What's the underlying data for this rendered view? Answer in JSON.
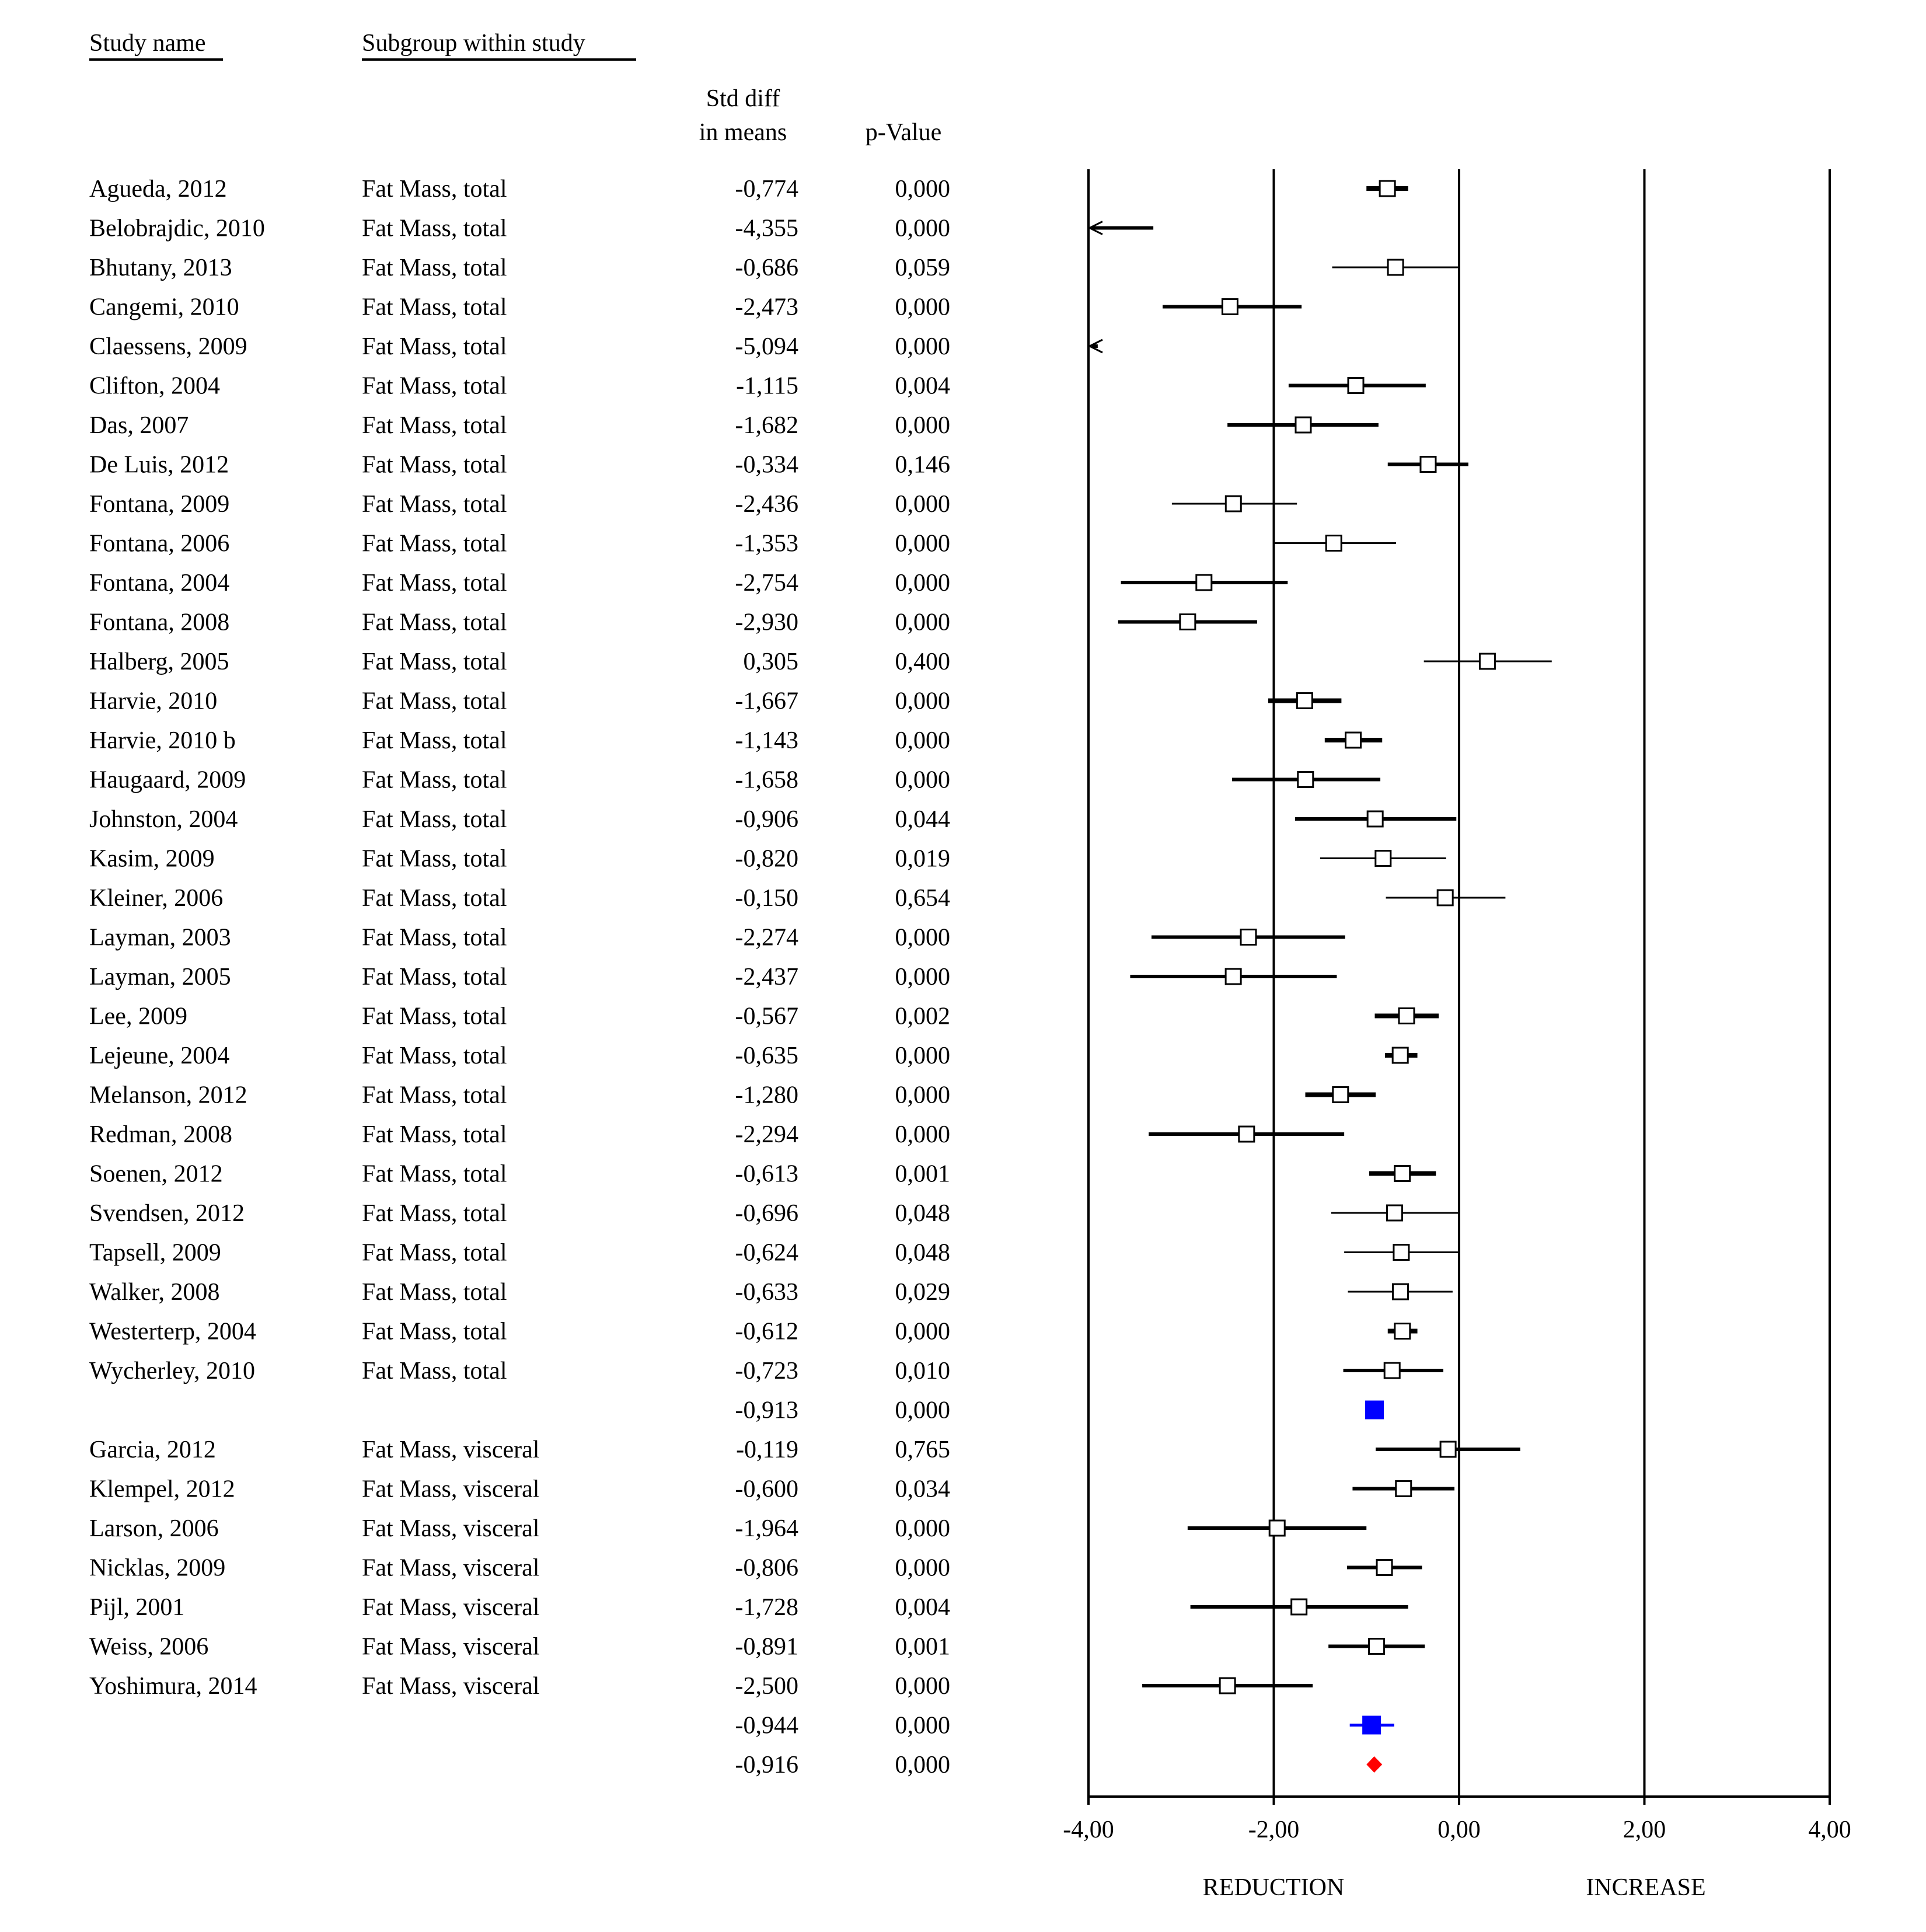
{
  "headers": {
    "study": "Study name",
    "subgroup": "Subgroup within study",
    "std_line1": "Std diff",
    "std_line2": "in means",
    "pvalue": "p-Value"
  },
  "axis_labels": {
    "left": "REDUCTION",
    "right": "INCREASE"
  },
  "colors": {
    "axis": "#000000",
    "subgroup_summary": "#0000ff",
    "overall_summary": "#ff0000",
    "study_marker_fill": "#ffffff"
  },
  "chart_data": {
    "type": "forest",
    "xlim": [
      -4,
      4
    ],
    "xticks": [
      -4,
      -2,
      0,
      2,
      4
    ],
    "xtick_labels": [
      "-4,00",
      "-2,00",
      "0,00",
      "2,00",
      "4,00"
    ],
    "reference_lines": [
      -4,
      -2,
      0,
      2,
      4
    ],
    "rows": [
      {
        "study": "Agueda, 2012",
        "subgroup": "Fat Mass, total",
        "smd": -0.774,
        "smd_label": "-0,774",
        "p": "0,000",
        "ci": [
          -1.0,
          -0.55
        ],
        "kind": "study"
      },
      {
        "study": "Belobrajdic, 2010",
        "subgroup": "Fat Mass, total",
        "smd": -4.355,
        "smd_label": "-4,355",
        "p": "0,000",
        "ci": [
          -5.4,
          -3.3
        ],
        "kind": "study"
      },
      {
        "study": "Bhutany, 2013",
        "subgroup": "Fat Mass, total",
        "smd": -0.686,
        "smd_label": "-0,686",
        "p": "0,059",
        "ci": [
          -1.37,
          0.0
        ],
        "kind": "study"
      },
      {
        "study": "Cangemi, 2010",
        "subgroup": "Fat Mass, total",
        "smd": -2.473,
        "smd_label": "-2,473",
        "p": "0,000",
        "ci": [
          -3.2,
          -1.7
        ],
        "kind": "study"
      },
      {
        "study": "Claessens, 2009",
        "subgroup": "Fat Mass, total",
        "smd": -5.094,
        "smd_label": "-5,094",
        "p": "0,000",
        "ci": [
          -6.3,
          -3.9
        ],
        "kind": "study"
      },
      {
        "study": "Clifton, 2004",
        "subgroup": "Fat Mass, total",
        "smd": -1.115,
        "smd_label": "-1,115",
        "p": "0,004",
        "ci": [
          -1.84,
          -0.36
        ],
        "kind": "study"
      },
      {
        "study": "Das, 2007",
        "subgroup": "Fat Mass, total",
        "smd": -1.682,
        "smd_label": "-1,682",
        "p": "0,000",
        "ci": [
          -2.5,
          -0.87
        ],
        "kind": "study"
      },
      {
        "study": "De Luis, 2012",
        "subgroup": "Fat Mass, total",
        "smd": -0.334,
        "smd_label": "-0,334",
        "p": "0,146",
        "ci": [
          -0.77,
          0.1
        ],
        "kind": "study"
      },
      {
        "study": "Fontana, 2009",
        "subgroup": "Fat Mass, total",
        "smd": -2.436,
        "smd_label": "-2,436",
        "p": "0,000",
        "ci": [
          -3.1,
          -1.75
        ],
        "kind": "study"
      },
      {
        "study": "Fontana, 2006",
        "subgroup": "Fat Mass, total",
        "smd": -1.353,
        "smd_label": "-1,353",
        "p": "0,000",
        "ci": [
          -2.0,
          -0.68
        ],
        "kind": "study"
      },
      {
        "study": "Fontana, 2004",
        "subgroup": "Fat Mass, total",
        "smd": -2.754,
        "smd_label": "-2,754",
        "p": "0,000",
        "ci": [
          -3.65,
          -1.85
        ],
        "kind": "study"
      },
      {
        "study": "Fontana, 2008",
        "subgroup": "Fat Mass, total",
        "smd": -2.93,
        "smd_label": "-2,930",
        "p": "0,000",
        "ci": [
          -3.68,
          -2.18
        ],
        "kind": "study"
      },
      {
        "study": "Halberg, 2005",
        "subgroup": "Fat Mass, total",
        "smd": 0.305,
        "smd_label": "0,305",
        "p": "0,400",
        "ci": [
          -0.38,
          1.0
        ],
        "kind": "study"
      },
      {
        "study": "Harvie, 2010",
        "subgroup": "Fat Mass, total",
        "smd": -1.667,
        "smd_label": "-1,667",
        "p": "0,000",
        "ci": [
          -2.06,
          -1.27
        ],
        "kind": "study"
      },
      {
        "study": "Harvie, 2010 b",
        "subgroup": "Fat Mass, total",
        "smd": -1.143,
        "smd_label": "-1,143",
        "p": "0,000",
        "ci": [
          -1.45,
          -0.83
        ],
        "kind": "study"
      },
      {
        "study": "Haugaard, 2009",
        "subgroup": "Fat Mass, total",
        "smd": -1.658,
        "smd_label": "-1,658",
        "p": "0,000",
        "ci": [
          -2.45,
          -0.85
        ],
        "kind": "study"
      },
      {
        "study": "Johnston, 2004",
        "subgroup": "Fat Mass, total",
        "smd": -0.906,
        "smd_label": "-0,906",
        "p": "0,044",
        "ci": [
          -1.77,
          -0.03
        ],
        "kind": "study"
      },
      {
        "study": "Kasim, 2009",
        "subgroup": "Fat Mass, total",
        "smd": -0.82,
        "smd_label": "-0,820",
        "p": "0,019",
        "ci": [
          -1.5,
          -0.14
        ],
        "kind": "study"
      },
      {
        "study": "Kleiner, 2006",
        "subgroup": "Fat Mass, total",
        "smd": -0.15,
        "smd_label": "-0,150",
        "p": "0,654",
        "ci": [
          -0.79,
          0.5
        ],
        "kind": "study"
      },
      {
        "study": "Layman, 2003",
        "subgroup": "Fat Mass, total",
        "smd": -2.274,
        "smd_label": "-2,274",
        "p": "0,000",
        "ci": [
          -3.32,
          -1.23
        ],
        "kind": "study"
      },
      {
        "study": "Layman, 2005",
        "subgroup": "Fat Mass, total",
        "smd": -2.437,
        "smd_label": "-2,437",
        "p": "0,000",
        "ci": [
          -3.55,
          -1.32
        ],
        "kind": "study"
      },
      {
        "study": "Lee, 2009",
        "subgroup": "Fat Mass, total",
        "smd": -0.567,
        "smd_label": "-0,567",
        "p": "0,002",
        "ci": [
          -0.91,
          -0.22
        ],
        "kind": "study"
      },
      {
        "study": "Lejeune, 2004",
        "subgroup": "Fat Mass, total",
        "smd": -0.635,
        "smd_label": "-0,635",
        "p": "0,000",
        "ci": [
          -0.8,
          -0.45
        ],
        "kind": "study"
      },
      {
        "study": "Melanson, 2012",
        "subgroup": "Fat Mass, total",
        "smd": -1.28,
        "smd_label": "-1,280",
        "p": "0,000",
        "ci": [
          -1.66,
          -0.9
        ],
        "kind": "study"
      },
      {
        "study": "Redman, 2008",
        "subgroup": "Fat Mass, total",
        "smd": -2.294,
        "smd_label": "-2,294",
        "p": "0,000",
        "ci": [
          -3.35,
          -1.24
        ],
        "kind": "study"
      },
      {
        "study": "Soenen, 2012",
        "subgroup": "Fat Mass, total",
        "smd": -0.613,
        "smd_label": "-0,613",
        "p": "0,001",
        "ci": [
          -0.97,
          -0.25
        ],
        "kind": "study"
      },
      {
        "study": "Svendsen, 2012",
        "subgroup": "Fat Mass, total",
        "smd": -0.696,
        "smd_label": "-0,696",
        "p": "0,048",
        "ci": [
          -1.38,
          0.0
        ],
        "kind": "study"
      },
      {
        "study": "Tapsell, 2009",
        "subgroup": "Fat Mass, total",
        "smd": -0.624,
        "smd_label": "-0,624",
        "p": "0,048",
        "ci": [
          -1.24,
          0.0
        ],
        "kind": "study"
      },
      {
        "study": "Walker, 2008",
        "subgroup": "Fat Mass, total",
        "smd": -0.633,
        "smd_label": "-0,633",
        "p": "0,029",
        "ci": [
          -1.2,
          -0.07
        ],
        "kind": "study"
      },
      {
        "study": "Westerterp, 2004",
        "subgroup": "Fat Mass, total",
        "smd": -0.612,
        "smd_label": "-0,612",
        "p": "0,000",
        "ci": [
          -0.77,
          -0.45
        ],
        "kind": "study"
      },
      {
        "study": "Wycherley, 2010",
        "subgroup": "Fat Mass, total",
        "smd": -0.723,
        "smd_label": "-0,723",
        "p": "0,010",
        "ci": [
          -1.25,
          -0.17
        ],
        "kind": "study"
      },
      {
        "study": "",
        "subgroup": "",
        "smd": -0.913,
        "smd_label": "-0,913",
        "p": "0,000",
        "ci": [
          -1.01,
          -0.82
        ],
        "kind": "subgroup_summary"
      },
      {
        "study": "Garcia, 2012",
        "subgroup": "Fat Mass, visceral",
        "smd": -0.119,
        "smd_label": "-0,119",
        "p": "0,765",
        "ci": [
          -0.9,
          0.66
        ],
        "kind": "study"
      },
      {
        "study": "Klempel, 2012",
        "subgroup": "Fat Mass, visceral",
        "smd": -0.6,
        "smd_label": "-0,600",
        "p": "0,034",
        "ci": [
          -1.15,
          -0.05
        ],
        "kind": "study"
      },
      {
        "study": "Larson, 2006",
        "subgroup": "Fat Mass, visceral",
        "smd": -1.964,
        "smd_label": "-1,964",
        "p": "0,000",
        "ci": [
          -2.93,
          -1.0
        ],
        "kind": "study"
      },
      {
        "study": "Nicklas, 2009",
        "subgroup": "Fat Mass, visceral",
        "smd": -0.806,
        "smd_label": "-0,806",
        "p": "0,000",
        "ci": [
          -1.21,
          -0.4
        ],
        "kind": "study"
      },
      {
        "study": "Pijl, 2001",
        "subgroup": "Fat Mass, visceral",
        "smd": -1.728,
        "smd_label": "-1,728",
        "p": "0,004",
        "ci": [
          -2.9,
          -0.55
        ],
        "kind": "study"
      },
      {
        "study": "Weiss, 2006",
        "subgroup": "Fat Mass, visceral",
        "smd": -0.891,
        "smd_label": "-0,891",
        "p": "0,001",
        "ci": [
          -1.41,
          -0.37
        ],
        "kind": "study"
      },
      {
        "study": "Yoshimura, 2014",
        "subgroup": "Fat Mass, visceral",
        "smd": -2.5,
        "smd_label": "-2,500",
        "p": "0,000",
        "ci": [
          -3.42,
          -1.58
        ],
        "kind": "study"
      },
      {
        "study": "",
        "subgroup": "",
        "smd": -0.944,
        "smd_label": "-0,944",
        "p": "0,000",
        "ci": [
          -1.18,
          -0.7
        ],
        "kind": "subgroup_summary"
      },
      {
        "study": "",
        "subgroup": "",
        "smd": -0.916,
        "smd_label": "-0,916",
        "p": "0,000",
        "ci": [
          -1.0,
          -0.83
        ],
        "kind": "overall_summary"
      }
    ]
  }
}
